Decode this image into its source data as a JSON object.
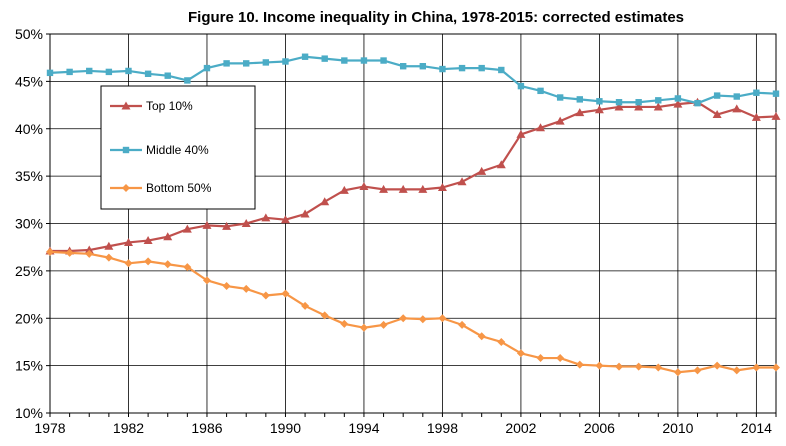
{
  "chart_data": {
    "type": "line",
    "title": "Figure 10. Income inequality in China, 1978-2015: corrected estimates",
    "xlabel": "",
    "ylabel": "",
    "xlim": [
      1978,
      2015
    ],
    "ylim": [
      0.1,
      0.5
    ],
    "x_ticks": [
      1978,
      1982,
      1986,
      1990,
      1994,
      1998,
      2002,
      2006,
      2010,
      2014
    ],
    "x_tick_labels": [
      "1978",
      "1982",
      "1986",
      "1990",
      "1994",
      "1998",
      "2002",
      "2006",
      "2010",
      "2014"
    ],
    "y_ticks": [
      0.1,
      0.15,
      0.2,
      0.25,
      0.3,
      0.35,
      0.4,
      0.45,
      0.5
    ],
    "y_tick_labels": [
      "10%",
      "15%",
      "20%",
      "25%",
      "30%",
      "35%",
      "40%",
      "45%",
      "50%"
    ],
    "grid": "horizontal and vertical",
    "legend_position": "top-left",
    "x": [
      1978,
      1979,
      1980,
      1981,
      1982,
      1983,
      1984,
      1985,
      1986,
      1987,
      1988,
      1989,
      1990,
      1991,
      1992,
      1993,
      1994,
      1995,
      1996,
      1997,
      1998,
      1999,
      2000,
      2001,
      2002,
      2003,
      2004,
      2005,
      2006,
      2007,
      2008,
      2009,
      2010,
      2011,
      2012,
      2013,
      2014,
      2015
    ],
    "series": [
      {
        "name": "Top 10%",
        "color": "#c0504d",
        "marker": "triangle",
        "values": [
          0.271,
          0.271,
          0.272,
          0.276,
          0.28,
          0.282,
          0.286,
          0.294,
          0.298,
          0.297,
          0.3,
          0.306,
          0.304,
          0.31,
          0.323,
          0.335,
          0.339,
          0.336,
          0.336,
          0.336,
          0.338,
          0.344,
          0.355,
          0.362,
          0.394,
          0.401,
          0.408,
          0.417,
          0.42,
          0.423,
          0.423,
          0.423,
          0.426,
          0.428,
          0.415,
          0.421,
          0.412,
          0.413
        ]
      },
      {
        "name": "Middle 40%",
        "color": "#4bacc6",
        "marker": "square",
        "values": [
          0.459,
          0.46,
          0.461,
          0.46,
          0.461,
          0.458,
          0.456,
          0.451,
          0.464,
          0.469,
          0.469,
          0.47,
          0.471,
          0.476,
          0.474,
          0.472,
          0.472,
          0.472,
          0.466,
          0.466,
          0.463,
          0.464,
          0.464,
          0.462,
          0.445,
          0.44,
          0.433,
          0.431,
          0.429,
          0.428,
          0.428,
          0.43,
          0.432,
          0.427,
          0.435,
          0.434,
          0.438,
          0.437
        ]
      },
      {
        "name": "Bottom 50%",
        "color": "#f79646",
        "marker": "diamond",
        "values": [
          0.27,
          0.269,
          0.268,
          0.264,
          0.258,
          0.26,
          0.257,
          0.254,
          0.24,
          0.234,
          0.231,
          0.224,
          0.226,
          0.213,
          0.203,
          0.194,
          0.19,
          0.193,
          0.2,
          0.199,
          0.2,
          0.193,
          0.181,
          0.175,
          0.163,
          0.158,
          0.158,
          0.151,
          0.15,
          0.149,
          0.149,
          0.148,
          0.143,
          0.145,
          0.15,
          0.145,
          0.148,
          0.148
        ]
      }
    ]
  }
}
